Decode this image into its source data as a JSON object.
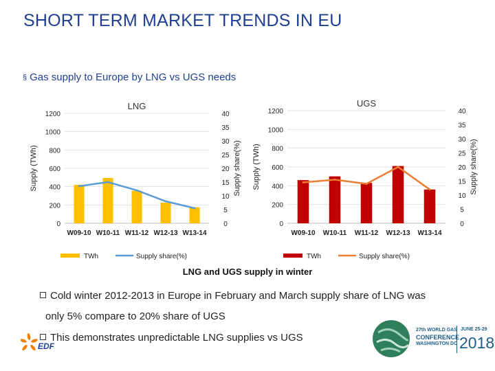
{
  "slide": {
    "title": "SHORT TERM MARKET TRENDS IN EU",
    "bullet_marker": "§",
    "bullet_text": "Gas supply to Europe by LNG vs UGS needs",
    "caption": "LNG and UGS supply in winter",
    "notes": [
      "Cold winter 2012-2013 in Europe in February and March supply share of LNG was",
      "only 5% compare to 20% share of UGS",
      "This demonstrates unpredictable LNG supplies vs UGS"
    ]
  },
  "logos": {
    "edf_text": "EDF",
    "conference_line1": "27th WORLD GAS",
    "conference_line2": "CONFERENCE",
    "conference_line3": "WASHINGTON DC",
    "conference_dates": "JUNE 25-29",
    "conference_year": "2018"
  },
  "colors": {
    "title": "#1f3f92",
    "lng_bar": "#ffc000",
    "lng_line": "#5b9bd5",
    "ugs_bar": "#c00000",
    "ugs_line": "#ed7d31"
  },
  "chart_data": [
    {
      "type": "bar",
      "title": "LNG",
      "categories": [
        "W09-10",
        "W10-11",
        "W11-12",
        "W12-13",
        "W13-14"
      ],
      "series": [
        {
          "name": "TWh",
          "axis": "left",
          "kind": "bar",
          "values": [
            420,
            495,
            355,
            225,
            175
          ]
        },
        {
          "name": "Supply share(%)",
          "axis": "right",
          "kind": "line",
          "values": [
            13.5,
            15,
            12,
            8,
            5.5
          ]
        }
      ],
      "ylabel": "Supply (TWh)",
      "y2label": "Supply share(%)",
      "ylim": [
        0,
        1200
      ],
      "y2lim": [
        0,
        40
      ],
      "yticks": [
        0,
        200,
        400,
        600,
        800,
        1000,
        1200
      ],
      "y2ticks": [
        0,
        5,
        10,
        15,
        20,
        25,
        30,
        35,
        40
      ],
      "legend": "bottom"
    },
    {
      "type": "bar",
      "title": "UGS",
      "categories": [
        "W09-10",
        "W10-11",
        "W11-12",
        "W12-13",
        "W13-14"
      ],
      "series": [
        {
          "name": "TWh",
          "axis": "left",
          "kind": "bar",
          "values": [
            460,
            500,
            430,
            610,
            360
          ]
        },
        {
          "name": "Supply share(%)",
          "axis": "right",
          "kind": "line",
          "values": [
            14.5,
            15.5,
            14,
            20,
            12
          ]
        }
      ],
      "ylabel": "Supply (TWh)",
      "y2label": "Supply share(%)",
      "ylim": [
        0,
        1200
      ],
      "y2lim": [
        0,
        40
      ],
      "yticks": [
        0,
        200,
        400,
        600,
        800,
        1000,
        1200
      ],
      "y2ticks": [
        0,
        5,
        10,
        15,
        20,
        25,
        30,
        35,
        40
      ],
      "legend": "bottom"
    }
  ]
}
